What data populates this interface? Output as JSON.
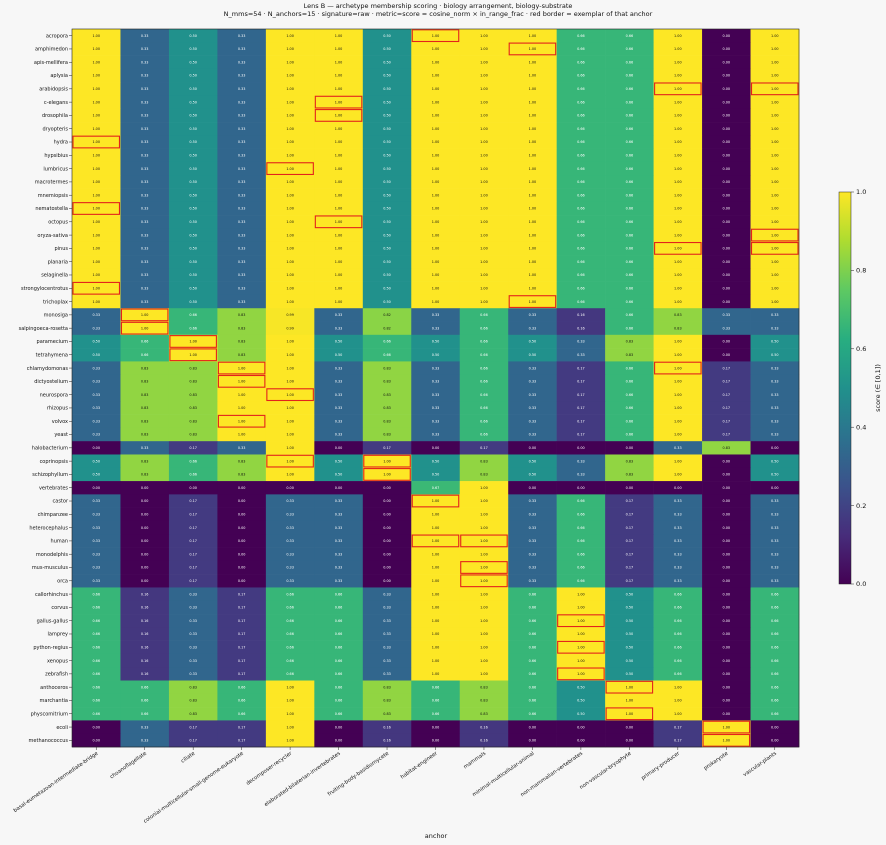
{
  "chart_data": {
    "type": "heatmap",
    "title": "Lens B — archetype membership scoring · biology arrangement, biology-substrate",
    "subtitle": "N_mms=54 · N_anchors=15 · signature=raw · metric=score = cosine_norm × in_range_frac · red border = exemplar of that anchor",
    "xlabel": "anchor",
    "ylabel": "",
    "colorbar_label": "score (∈ [0,1])",
    "colorbar_ticks": [
      "0.0",
      "0.2",
      "0.4",
      "0.6",
      "0.8",
      "1.0"
    ],
    "vmin": 0,
    "vmax": 1,
    "colormap": "viridis",
    "exemplar_border_color": "#e3231b",
    "columns": [
      "basal-eumetazoan-intermediate-bridge",
      "choanoflagellate",
      "ciliate",
      "colonial-multicellular-small-genome-eukaryote",
      "decomposer-recycler",
      "elaborated-bilaterian-invertebrates",
      "fruiting-body-basidiomycete",
      "habitat-engineer",
      "mammals",
      "minimal-multicellular-animal",
      "non-mammalian-vertebrates",
      "non-vascular-bryophyte",
      "primary-producer",
      "prokaryote",
      "vascular-plants"
    ],
    "rows": [
      "acropora",
      "amphimedon",
      "apis-mellifera",
      "aplysia",
      "arabidopsis",
      "c-elegans",
      "drosophila",
      "dryopteris",
      "hydra",
      "hypsibius",
      "lumbricus",
      "macrotermes",
      "mnemiopsis",
      "nematostella",
      "octopus",
      "oryza-sativa",
      "pinus",
      "planaria",
      "selaginella",
      "strongylocentrotus",
      "trichoplax",
      "monosiga",
      "salpingoeca-rosetta",
      "paramecium",
      "tetrahymena",
      "chlamydomonas",
      "dictyostelium",
      "neurospora",
      "rhizopus",
      "volvox",
      "yeast",
      "halobacterium",
      "coprinopsis",
      "schizophyllum",
      "vertebrates",
      "castor",
      "chimpanzee",
      "heterocephalus",
      "human",
      "monodelphis",
      "mus-musculus",
      "orca",
      "callorhinchus",
      "corvus",
      "gallus-gallus",
      "lamprey",
      "python-regius",
      "xenopus",
      "zebrafish",
      "anthoceros",
      "marchantia",
      "physcomitrium",
      "ecoli",
      "methanococcus"
    ],
    "values": [
      [
        1.0,
        0.33,
        0.5,
        0.33,
        1.0,
        1.0,
        0.5,
        1.0,
        1.0,
        1.0,
        0.66,
        0.66,
        1.0,
        0.0,
        1.0
      ],
      [
        1.0,
        0.33,
        0.5,
        0.33,
        1.0,
        1.0,
        0.5,
        1.0,
        1.0,
        1.0,
        0.66,
        0.66,
        1.0,
        0.0,
        1.0
      ],
      [
        1.0,
        0.33,
        0.5,
        0.33,
        1.0,
        1.0,
        0.5,
        1.0,
        1.0,
        1.0,
        0.66,
        0.66,
        1.0,
        0.0,
        1.0
      ],
      [
        1.0,
        0.33,
        0.5,
        0.33,
        1.0,
        1.0,
        0.5,
        1.0,
        1.0,
        1.0,
        0.66,
        0.66,
        1.0,
        0.0,
        1.0
      ],
      [
        1.0,
        0.33,
        0.5,
        0.33,
        1.0,
        1.0,
        0.5,
        1.0,
        1.0,
        1.0,
        0.66,
        0.66,
        1.0,
        0.0,
        1.0
      ],
      [
        1.0,
        0.33,
        0.5,
        0.33,
        1.0,
        1.0,
        0.5,
        1.0,
        1.0,
        1.0,
        0.66,
        0.66,
        1.0,
        0.0,
        1.0
      ],
      [
        1.0,
        0.33,
        0.5,
        0.33,
        1.0,
        1.0,
        0.5,
        1.0,
        1.0,
        1.0,
        0.66,
        0.66,
        1.0,
        0.0,
        1.0
      ],
      [
        1.0,
        0.33,
        0.5,
        0.33,
        1.0,
        1.0,
        0.5,
        1.0,
        1.0,
        1.0,
        0.66,
        0.66,
        1.0,
        0.0,
        1.0
      ],
      [
        1.0,
        0.33,
        0.5,
        0.33,
        1.0,
        1.0,
        0.5,
        1.0,
        1.0,
        1.0,
        0.66,
        0.66,
        1.0,
        0.0,
        1.0
      ],
      [
        1.0,
        0.33,
        0.5,
        0.33,
        1.0,
        1.0,
        0.5,
        1.0,
        1.0,
        1.0,
        0.66,
        0.66,
        1.0,
        0.0,
        1.0
      ],
      [
        1.0,
        0.33,
        0.5,
        0.33,
        1.0,
        1.0,
        0.5,
        1.0,
        1.0,
        1.0,
        0.66,
        0.66,
        1.0,
        0.0,
        1.0
      ],
      [
        1.0,
        0.33,
        0.5,
        0.33,
        1.0,
        1.0,
        0.5,
        1.0,
        1.0,
        1.0,
        0.66,
        0.66,
        1.0,
        0.0,
        1.0
      ],
      [
        1.0,
        0.33,
        0.5,
        0.33,
        1.0,
        1.0,
        0.5,
        1.0,
        1.0,
        1.0,
        0.66,
        0.66,
        1.0,
        0.0,
        1.0
      ],
      [
        1.0,
        0.33,
        0.5,
        0.33,
        1.0,
        1.0,
        0.5,
        1.0,
        1.0,
        1.0,
        0.66,
        0.66,
        1.0,
        0.0,
        1.0
      ],
      [
        1.0,
        0.33,
        0.5,
        0.33,
        1.0,
        1.0,
        0.5,
        1.0,
        1.0,
        1.0,
        0.66,
        0.66,
        1.0,
        0.0,
        1.0
      ],
      [
        1.0,
        0.33,
        0.5,
        0.33,
        1.0,
        1.0,
        0.5,
        1.0,
        1.0,
        1.0,
        0.66,
        0.66,
        1.0,
        0.0,
        1.0
      ],
      [
        1.0,
        0.33,
        0.5,
        0.33,
        1.0,
        1.0,
        0.5,
        1.0,
        1.0,
        1.0,
        0.66,
        0.66,
        1.0,
        0.0,
        1.0
      ],
      [
        1.0,
        0.33,
        0.5,
        0.33,
        1.0,
        1.0,
        0.5,
        1.0,
        1.0,
        1.0,
        0.66,
        0.66,
        1.0,
        0.0,
        1.0
      ],
      [
        1.0,
        0.33,
        0.5,
        0.33,
        1.0,
        1.0,
        0.5,
        1.0,
        1.0,
        1.0,
        0.66,
        0.66,
        1.0,
        0.0,
        1.0
      ],
      [
        1.0,
        0.33,
        0.5,
        0.33,
        1.0,
        1.0,
        0.5,
        1.0,
        1.0,
        1.0,
        0.66,
        0.66,
        1.0,
        0.0,
        1.0
      ],
      [
        1.0,
        0.33,
        0.5,
        0.33,
        1.0,
        1.0,
        0.5,
        1.0,
        1.0,
        1.0,
        0.66,
        0.66,
        1.0,
        0.0,
        1.0
      ],
      [
        0.33,
        1.0,
        0.66,
        0.83,
        0.99,
        0.33,
        0.82,
        0.33,
        0.66,
        0.33,
        0.16,
        0.66,
        0.83,
        0.33,
        0.33
      ],
      [
        0.33,
        1.0,
        0.66,
        0.83,
        0.99,
        0.33,
        0.82,
        0.33,
        0.66,
        0.33,
        0.16,
        0.66,
        0.83,
        0.33,
        0.33
      ],
      [
        0.5,
        0.66,
        1.0,
        0.83,
        1.0,
        0.5,
        0.66,
        0.5,
        0.66,
        0.5,
        0.33,
        0.83,
        1.0,
        0.0,
        0.5
      ],
      [
        0.5,
        0.66,
        1.0,
        0.83,
        1.0,
        0.5,
        0.66,
        0.5,
        0.66,
        0.5,
        0.33,
        0.83,
        1.0,
        0.0,
        0.5
      ],
      [
        0.33,
        0.83,
        0.83,
        1.0,
        1.0,
        0.33,
        0.83,
        0.33,
        0.66,
        0.33,
        0.17,
        0.66,
        1.0,
        0.17,
        0.33
      ],
      [
        0.33,
        0.83,
        0.83,
        1.0,
        1.0,
        0.33,
        0.83,
        0.33,
        0.66,
        0.33,
        0.17,
        0.66,
        1.0,
        0.17,
        0.33
      ],
      [
        0.33,
        0.83,
        0.83,
        1.0,
        1.0,
        0.33,
        0.83,
        0.33,
        0.66,
        0.33,
        0.17,
        0.66,
        1.0,
        0.17,
        0.33
      ],
      [
        0.33,
        0.83,
        0.83,
        1.0,
        1.0,
        0.33,
        0.83,
        0.33,
        0.66,
        0.33,
        0.17,
        0.66,
        1.0,
        0.17,
        0.33
      ],
      [
        0.33,
        0.83,
        0.83,
        1.0,
        1.0,
        0.33,
        0.83,
        0.33,
        0.66,
        0.33,
        0.17,
        0.66,
        1.0,
        0.17,
        0.33
      ],
      [
        0.33,
        0.83,
        0.83,
        1.0,
        1.0,
        0.33,
        0.83,
        0.33,
        0.66,
        0.33,
        0.17,
        0.66,
        1.0,
        0.17,
        0.33
      ],
      [
        0.0,
        0.33,
        0.17,
        0.33,
        1.0,
        0.0,
        0.17,
        0.0,
        0.17,
        0.0,
        0.0,
        0.0,
        0.33,
        0.83,
        0.0
      ],
      [
        0.5,
        0.83,
        0.66,
        0.83,
        1.0,
        0.5,
        1.0,
        0.5,
        0.83,
        0.5,
        0.33,
        0.83,
        1.0,
        0.0,
        0.5
      ],
      [
        0.5,
        0.83,
        0.66,
        0.83,
        1.0,
        0.5,
        1.0,
        0.5,
        0.83,
        0.5,
        0.33,
        0.83,
        1.0,
        0.0,
        0.5
      ],
      [
        0.0,
        0.0,
        0.0,
        0.0,
        0.0,
        0.0,
        0.0,
        0.67,
        1.0,
        0.0,
        0.0,
        0.0,
        0.0,
        0.0,
        0.0
      ],
      [
        0.33,
        0.0,
        0.17,
        0.0,
        0.33,
        0.33,
        0.0,
        1.0,
        1.0,
        0.33,
        0.66,
        0.17,
        0.33,
        0.0,
        0.33
      ],
      [
        0.33,
        0.0,
        0.17,
        0.0,
        0.33,
        0.33,
        0.0,
        1.0,
        1.0,
        0.33,
        0.66,
        0.17,
        0.33,
        0.0,
        0.33
      ],
      [
        0.33,
        0.0,
        0.17,
        0.0,
        0.33,
        0.33,
        0.0,
        1.0,
        1.0,
        0.33,
        0.66,
        0.17,
        0.33,
        0.0,
        0.33
      ],
      [
        0.33,
        0.0,
        0.17,
        0.0,
        0.33,
        0.33,
        0.0,
        1.0,
        1.0,
        0.33,
        0.66,
        0.17,
        0.33,
        0.0,
        0.33
      ],
      [
        0.33,
        0.0,
        0.17,
        0.0,
        0.33,
        0.33,
        0.0,
        1.0,
        1.0,
        0.33,
        0.66,
        0.17,
        0.33,
        0.0,
        0.33
      ],
      [
        0.33,
        0.0,
        0.17,
        0.0,
        0.33,
        0.33,
        0.0,
        1.0,
        1.0,
        0.33,
        0.66,
        0.17,
        0.33,
        0.0,
        0.33
      ],
      [
        0.33,
        0.0,
        0.17,
        0.0,
        0.33,
        0.33,
        0.0,
        1.0,
        1.0,
        0.33,
        0.66,
        0.17,
        0.33,
        0.0,
        0.33
      ],
      [
        0.66,
        0.16,
        0.33,
        0.17,
        0.66,
        0.66,
        0.33,
        1.0,
        1.0,
        0.66,
        1.0,
        0.5,
        0.66,
        0.0,
        0.66
      ],
      [
        0.66,
        0.16,
        0.33,
        0.17,
        0.66,
        0.66,
        0.33,
        1.0,
        1.0,
        0.66,
        1.0,
        0.5,
        0.66,
        0.0,
        0.66
      ],
      [
        0.66,
        0.16,
        0.33,
        0.17,
        0.66,
        0.66,
        0.33,
        1.0,
        1.0,
        0.66,
        1.0,
        0.5,
        0.66,
        0.0,
        0.66
      ],
      [
        0.66,
        0.16,
        0.33,
        0.17,
        0.66,
        0.66,
        0.33,
        1.0,
        1.0,
        0.66,
        1.0,
        0.5,
        0.66,
        0.0,
        0.66
      ],
      [
        0.66,
        0.16,
        0.33,
        0.17,
        0.66,
        0.66,
        0.33,
        1.0,
        1.0,
        0.66,
        1.0,
        0.5,
        0.66,
        0.0,
        0.66
      ],
      [
        0.66,
        0.16,
        0.33,
        0.17,
        0.66,
        0.66,
        0.33,
        1.0,
        1.0,
        0.66,
        1.0,
        0.5,
        0.66,
        0.0,
        0.66
      ],
      [
        0.66,
        0.16,
        0.33,
        0.17,
        0.66,
        0.66,
        0.33,
        1.0,
        1.0,
        0.66,
        1.0,
        0.5,
        0.66,
        0.0,
        0.66
      ],
      [
        0.66,
        0.66,
        0.83,
        0.66,
        1.0,
        0.66,
        0.83,
        0.66,
        0.83,
        0.66,
        0.5,
        1.0,
        1.0,
        0.0,
        0.66
      ],
      [
        0.66,
        0.66,
        0.83,
        0.66,
        1.0,
        0.66,
        0.83,
        0.66,
        0.83,
        0.66,
        0.5,
        1.0,
        1.0,
        0.0,
        0.66
      ],
      [
        0.66,
        0.66,
        0.83,
        0.66,
        1.0,
        0.66,
        0.83,
        0.66,
        0.83,
        0.66,
        0.5,
        1.0,
        1.0,
        0.0,
        0.66
      ],
      [
        0.0,
        0.33,
        0.17,
        0.17,
        1.0,
        0.0,
        0.16,
        0.0,
        0.16,
        0.0,
        0.0,
        0.0,
        0.17,
        1.0,
        0.0
      ],
      [
        0.0,
        0.33,
        0.17,
        0.17,
        1.0,
        0.0,
        0.16,
        0.0,
        0.16,
        0.0,
        0.0,
        0.0,
        0.17,
        1.0,
        0.0
      ]
    ],
    "exemplars": [
      [
        0,
        7
      ],
      [
        1,
        9
      ],
      [
        4,
        12
      ],
      [
        4,
        14
      ],
      [
        5,
        5
      ],
      [
        6,
        5
      ],
      [
        8,
        0
      ],
      [
        10,
        4
      ],
      [
        13,
        0
      ],
      [
        14,
        5
      ],
      [
        15,
        14
      ],
      [
        16,
        12
      ],
      [
        16,
        14
      ],
      [
        19,
        0
      ],
      [
        20,
        9
      ],
      [
        21,
        1
      ],
      [
        22,
        1
      ],
      [
        23,
        2
      ],
      [
        24,
        2
      ],
      [
        25,
        3
      ],
      [
        25,
        12
      ],
      [
        26,
        3
      ],
      [
        27,
        4
      ],
      [
        29,
        3
      ],
      [
        32,
        4
      ],
      [
        32,
        6
      ],
      [
        33,
        6
      ],
      [
        35,
        7
      ],
      [
        38,
        7
      ],
      [
        38,
        8
      ],
      [
        40,
        8
      ],
      [
        41,
        8
      ],
      [
        44,
        10
      ],
      [
        46,
        10
      ],
      [
        48,
        10
      ],
      [
        49,
        11
      ],
      [
        51,
        11
      ],
      [
        52,
        13
      ],
      [
        53,
        13
      ]
    ]
  }
}
